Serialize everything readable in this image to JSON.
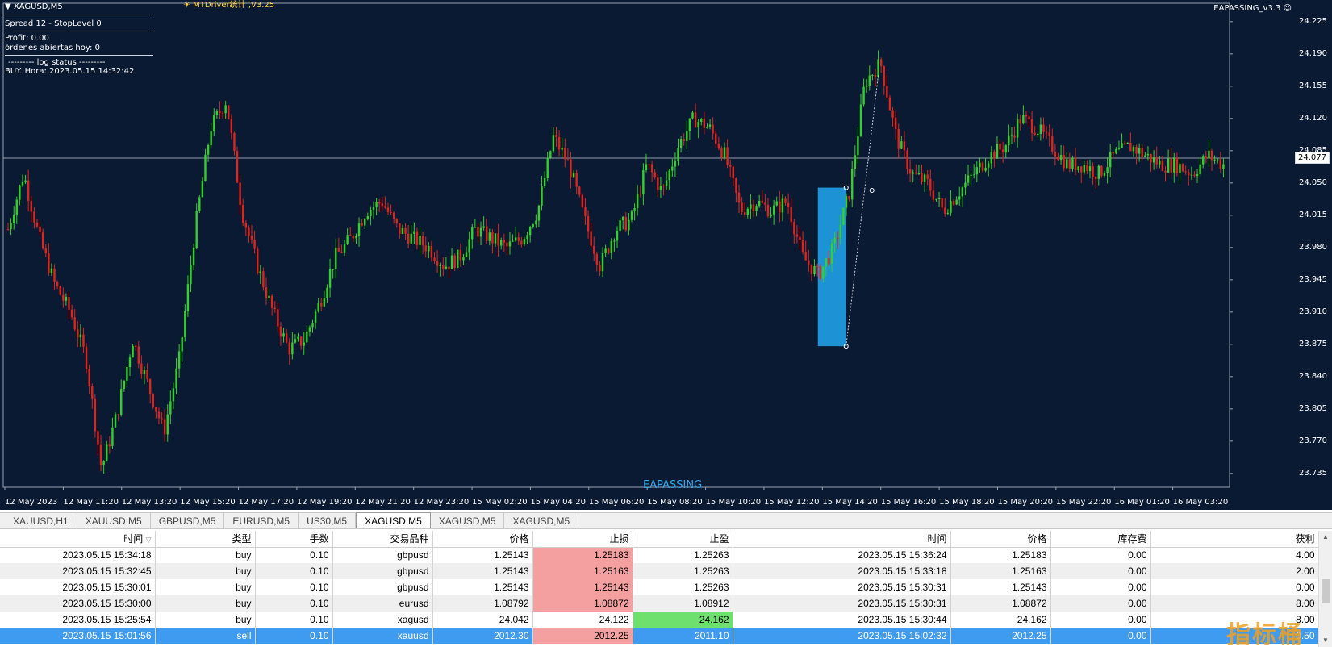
{
  "chart_window": {
    "title": "XAGUSD,M5",
    "lines": [
      "Spread 12 - StopLevel 0",
      "Profit: 0.00",
      "órdenes abiertas hoy: 0",
      "--------- log status ---------",
      "BUY. Hora: 2023.05.15 14:32:42"
    ],
    "driver_label": "MTDriver统计 ,V3.25",
    "ea_label": "EAPASSING_v3.3",
    "watermark_center": "EAPASSING",
    "current_price": "24.077",
    "colors": {
      "background": "#0b1a33",
      "bull": "#33d12a",
      "bear": "#e0241b",
      "highlight": "#1fa0e6"
    }
  },
  "chart_data": {
    "type": "candlestick",
    "symbol": "XAGUSD",
    "timeframe": "M5",
    "y_ticks": [
      "24.225",
      "24.190",
      "24.155",
      "24.120",
      "24.085",
      "24.050",
      "24.015",
      "23.980",
      "23.945",
      "23.910",
      "23.875",
      "23.840",
      "23.805",
      "23.770",
      "23.735"
    ],
    "x_ticks": [
      "12 May 2023",
      "12 May 11:20",
      "12 May 13:20",
      "12 May 15:20",
      "12 May 17:20",
      "12 May 19:20",
      "12 May 21:20",
      "12 May 23:20",
      "15 May 02:20",
      "15 May 04:20",
      "15 May 06:20",
      "15 May 08:20",
      "15 May 10:20",
      "15 May 12:20",
      "15 May 14:20",
      "15 May 16:20",
      "15 May 18:20",
      "15 May 20:20",
      "15 May 22:20",
      "16 May 01:20",
      "16 May 03:20"
    ],
    "ylim": [
      23.72,
      24.245
    ],
    "close_path": [
      24.0,
      24.06,
      23.99,
      23.94,
      23.91,
      23.86,
      23.74,
      23.8,
      23.88,
      23.83,
      23.78,
      23.86,
      24.0,
      24.11,
      24.14,
      24.02,
      23.96,
      23.91,
      23.87,
      23.88,
      23.92,
      23.97,
      23.99,
      24.02,
      24.03,
      24.0,
      23.99,
      23.98,
      23.96,
      23.97,
      24.0,
      23.99,
      23.98,
      23.99,
      24.02,
      24.1,
      24.07,
      24.01,
      23.96,
      24.0,
      24.01,
      24.07,
      24.04,
      24.09,
      24.12,
      24.11,
      24.08,
      24.02,
      24.03,
      24.02,
      24.03,
      23.97,
      23.95,
      23.98,
      24.04,
      24.16,
      24.18,
      24.1,
      24.06,
      24.05,
      24.02,
      24.04,
      24.06,
      24.08,
      24.09,
      24.12,
      24.11,
      24.09,
      24.07,
      24.07,
      24.06,
      24.08,
      24.09,
      24.08,
      24.07,
      24.07,
      24.06,
      24.08,
      24.07
    ]
  },
  "tabs": [
    "XAUUSD,H1",
    "XAUUSD,M5",
    "GBPUSD,M5",
    "EURUSD,M5",
    "US30,M5",
    "XAGUSD,M5",
    "XAGUSD,M5",
    "XAGUSD,M5"
  ],
  "active_tab": 5,
  "table": {
    "headers": [
      "时间",
      "类型",
      "手数",
      "交易品种",
      "价格",
      "止损",
      "止盈",
      "时间",
      "价格",
      "库存费",
      "获利"
    ],
    "rows": [
      [
        "2023.05.15 15:34:18",
        "buy",
        "0.10",
        "gbpusd",
        "1.25143",
        "1.25183",
        "1.25263",
        "2023.05.15 15:36:24",
        "1.25183",
        "0.00",
        "4.00"
      ],
      [
        "2023.05.15 15:32:45",
        "buy",
        "0.10",
        "gbpusd",
        "1.25143",
        "1.25163",
        "1.25263",
        "2023.05.15 15:33:18",
        "1.25163",
        "0.00",
        "2.00"
      ],
      [
        "2023.05.15 15:30:01",
        "buy",
        "0.10",
        "gbpusd",
        "1.25143",
        "1.25143",
        "1.25263",
        "2023.05.15 15:30:31",
        "1.25143",
        "0.00",
        "0.00"
      ],
      [
        "2023.05.15 15:30:00",
        "buy",
        "0.10",
        "eurusd",
        "1.08792",
        "1.08872",
        "1.08912",
        "2023.05.15 15:30:31",
        "1.08872",
        "0.00",
        "8.00"
      ],
      [
        "2023.05.15 15:25:54",
        "buy",
        "0.10",
        "xagusd",
        "24.042",
        "24.122",
        "24.162",
        "2023.05.15 15:30:44",
        "24.162",
        "0.00",
        "8.00"
      ],
      [
        "2023.05.15 15:01:56",
        "sell",
        "0.10",
        "xauusd",
        "2012.30",
        "2012.25",
        "2011.10",
        "2023.05.15 15:02:32",
        "2012.25",
        "0.00",
        "0.50"
      ]
    ]
  },
  "watermark_corner": "指标桶"
}
